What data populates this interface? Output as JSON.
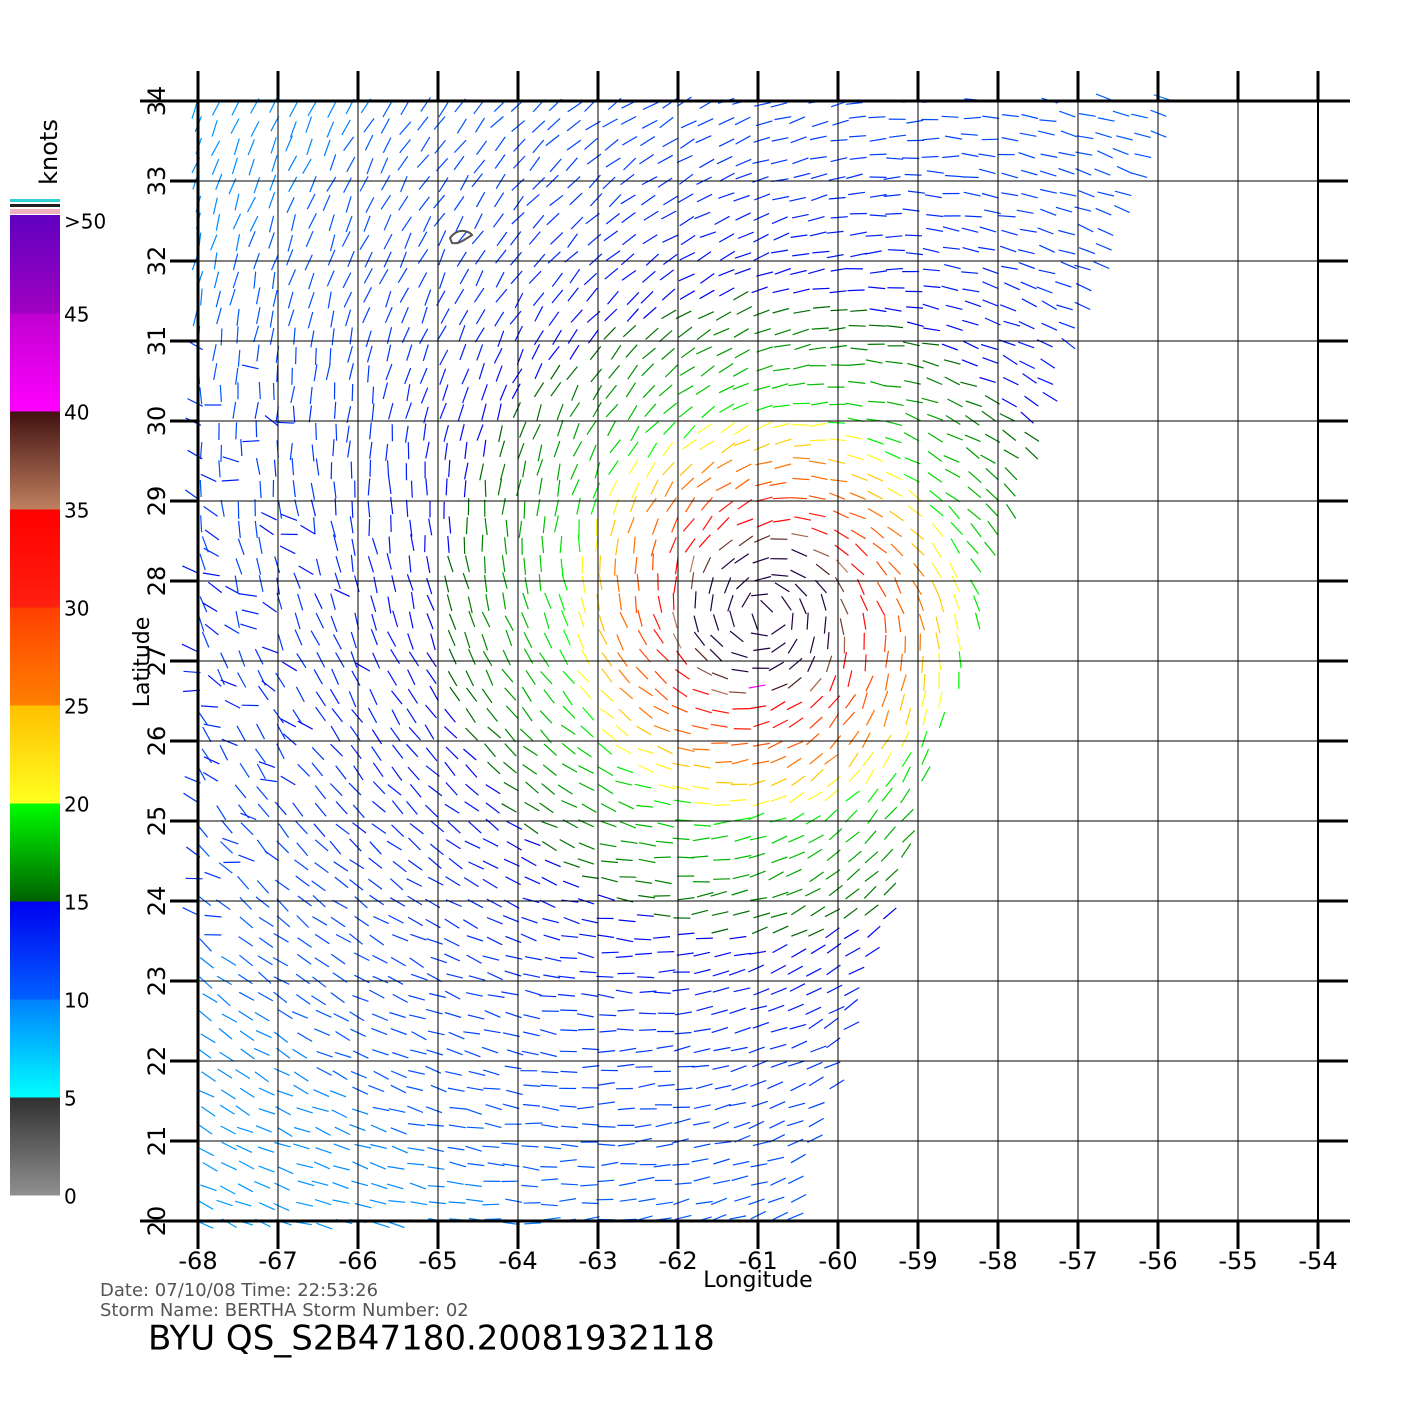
{
  "map": {
    "xlabel": "Longitude",
    "ylabel": "Latitude",
    "xlim": [
      -68,
      -54
    ],
    "xticks": [
      -68,
      -67,
      -66,
      -65,
      -64,
      -63,
      -62,
      -61,
      -60,
      -59,
      -58,
      -57,
      -56,
      -55,
      -54
    ],
    "ylim": [
      20,
      34
    ],
    "yticks": [
      20,
      21,
      22,
      23,
      24,
      25,
      26,
      27,
      28,
      29,
      30,
      31,
      32,
      33,
      34
    ],
    "grid": true,
    "colorbar": {
      "title": "knots",
      "lim": [
        0,
        50
      ],
      "ticks": [
        0,
        5,
        10,
        15,
        20,
        25,
        30,
        35,
        40,
        45,
        {
          "value": 50,
          "label": ">50"
        }
      ]
    },
    "footer": {
      "line1": "Date:  07/10/08   Time:  22:53:26",
      "line2": "Storm  Name:  BERTHA    Storm  Number:  02",
      "title": "BYU  QS_S2B47180.20081932118"
    }
  }
}
